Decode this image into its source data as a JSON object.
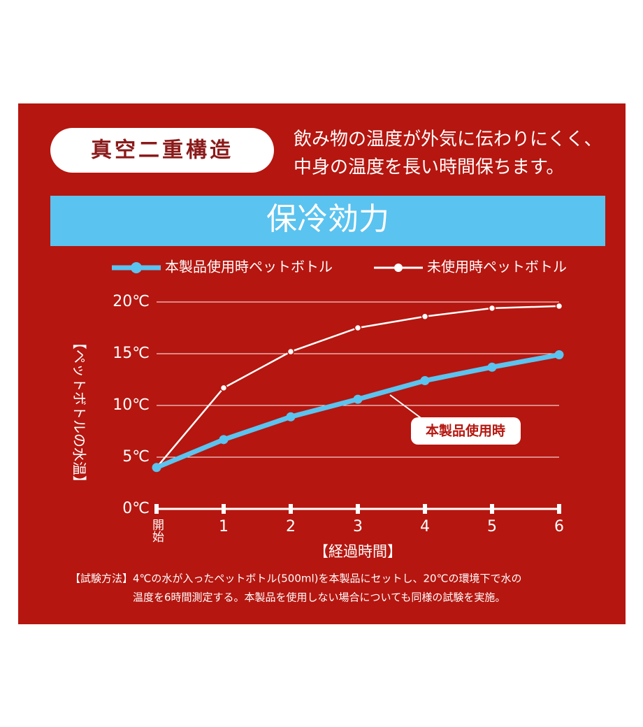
{
  "badge": "真空二重構造",
  "description": [
    "飲み物の温度が外気に伝わりにくく、",
    "中身の温度を長い時間保ちます。"
  ],
  "chart_data": {
    "type": "line",
    "title": "保冷効力",
    "y_label": "【ペットボトルの水温】",
    "x_label": "【経過時間】",
    "categories": [
      "開始",
      "1",
      "2",
      "3",
      "4",
      "5",
      "6"
    ],
    "series": [
      {
        "name": "本製品使用時ペットボトル",
        "color": "#5bc3ef",
        "values": [
          4,
          6.7,
          8.9,
          10.6,
          12.4,
          13.7,
          14.9
        ]
      },
      {
        "name": "未使用時ペットボトル",
        "color": "#ffffff",
        "values": [
          4,
          11.7,
          15.2,
          17.5,
          18.6,
          19.4,
          19.6
        ]
      }
    ],
    "ylim": [
      0,
      20
    ],
    "yticks": [
      {
        "value": 0,
        "label": "0℃"
      },
      {
        "value": 5,
        "label": "5℃"
      },
      {
        "value": 10,
        "label": "10℃"
      },
      {
        "value": 15,
        "label": "15℃"
      },
      {
        "value": 20,
        "label": "20℃"
      }
    ],
    "grid": true,
    "annotation": "本製品使用時"
  },
  "footnote": [
    "【試験方法】4℃の水が入ったペットボトル(500ml)を本製品にセットし、20℃の環境下で水の",
    "温度を6時間測定する。本製品を使用しない場合についても同様の試験を実施。"
  ]
}
